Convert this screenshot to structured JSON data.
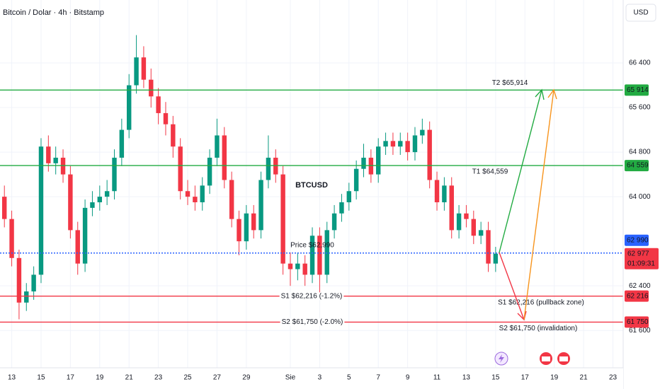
{
  "chart_data": {
    "type": "candlestick",
    "title": "Bitcoin / Dolar · 4h · Bitstamp",
    "currency": "USD",
    "symbol": "BTCUSD",
    "up_color": "#089981",
    "down_color": "#f23645",
    "x": [
      -0.5,
      0,
      0.5,
      1,
      1.5,
      2,
      2.5,
      3,
      3.5,
      4,
      4.5,
      5,
      5.5,
      6,
      6.5,
      7,
      7.5,
      8,
      8.5,
      9,
      9.5,
      10,
      10.5,
      11,
      11.5,
      12,
      12.5,
      13,
      13.5,
      14,
      14.5,
      15,
      15.5,
      16,
      16.5,
      17,
      17.5,
      18,
      18.5,
      19,
      19.5,
      20,
      20.5,
      21,
      21.5,
      22,
      22.5,
      23,
      23.5,
      24,
      24.5,
      25,
      25.5,
      26,
      26.5,
      27,
      27.5,
      28,
      28.5,
      29,
      29.5,
      30,
      30.5,
      31,
      31.5,
      32,
      32.5,
      33
    ],
    "open": [
      64000,
      63600,
      62900,
      62100,
      62300,
      62600,
      64900,
      64600,
      64700,
      64400,
      63400,
      62800,
      63800,
      63900,
      64000,
      64100,
      64700,
      65200,
      66000,
      66500,
      66100,
      65800,
      65500,
      65300,
      64900,
      64100,
      64000,
      63900,
      64200,
      64700,
      65100,
      64300,
      63600,
      63200,
      63700,
      63400,
      64300,
      64700,
      64400,
      62800,
      62700,
      62800,
      62600,
      63300,
      62600,
      63400,
      63700,
      63900,
      64100,
      64500,
      64700,
      64400,
      64900,
      65000,
      64900,
      65000,
      64800,
      65100,
      65200,
      64300,
      63900,
      64200,
      63400,
      63700,
      63600,
      63300,
      63400,
      62800
    ],
    "high": [
      64200,
      63750,
      63050,
      62450,
      62750,
      65050,
      65100,
      64900,
      64850,
      64550,
      63550,
      63950,
      64100,
      64200,
      64300,
      64850,
      65400,
      66200,
      66900,
      66700,
      66300,
      65950,
      65700,
      65450,
      65050,
      64300,
      64200,
      64350,
      64850,
      65400,
      65250,
      64450,
      63750,
      63850,
      63850,
      64450,
      65100,
      64850,
      64550,
      63000,
      63000,
      62950,
      63450,
      63450,
      63550,
      63850,
      64050,
      64250,
      64650,
      64950,
      64850,
      65050,
      65150,
      65150,
      65150,
      65150,
      65250,
      65400,
      65350,
      64450,
      64350,
      64350,
      63850,
      63850,
      63750,
      63550,
      63550,
      63100
    ],
    "low": [
      63450,
      62750,
      61800,
      61950,
      62150,
      62450,
      64450,
      64400,
      64250,
      63250,
      62600,
      62650,
      63650,
      63750,
      63850,
      63950,
      64550,
      65050,
      65850,
      65950,
      65600,
      65300,
      65100,
      64700,
      63950,
      63850,
      63750,
      63750,
      64050,
      64550,
      64150,
      63450,
      62950,
      63050,
      63250,
      63250,
      64150,
      64250,
      62600,
      62400,
      62500,
      62400,
      62450,
      62250,
      62450,
      63250,
      63550,
      63750,
      63950,
      64350,
      64250,
      64250,
      64750,
      64750,
      64750,
      64650,
      64650,
      64950,
      64150,
      63750,
      63750,
      63250,
      63250,
      63450,
      63150,
      63150,
      62650,
      62650
    ],
    "close": [
      63600,
      62900,
      62100,
      62300,
      62600,
      64900,
      64600,
      64700,
      64400,
      63400,
      62800,
      63800,
      63900,
      64000,
      64100,
      64700,
      65200,
      66000,
      66500,
      66100,
      65800,
      65500,
      65300,
      64900,
      64100,
      64000,
      63900,
      64200,
      64700,
      65100,
      64300,
      63600,
      63200,
      63700,
      63400,
      64300,
      64700,
      64400,
      62800,
      62700,
      62800,
      62600,
      63300,
      62600,
      63400,
      63700,
      63900,
      64100,
      64500,
      64700,
      64400,
      64900,
      65000,
      64900,
      65000,
      64800,
      65100,
      65200,
      64300,
      63900,
      64200,
      63400,
      63700,
      63600,
      63300,
      63400,
      62800,
      62977
    ],
    "xlim": [
      -0.8,
      41.7
    ],
    "xticks": [
      {
        "value": 0,
        "label": "13"
      },
      {
        "value": 2,
        "label": "15"
      },
      {
        "value": 4,
        "label": "17"
      },
      {
        "value": 6,
        "label": "19"
      },
      {
        "value": 8,
        "label": "21"
      },
      {
        "value": 10,
        "label": "23"
      },
      {
        "value": 12,
        "label": "25"
      },
      {
        "value": 14,
        "label": "27"
      },
      {
        "value": 16,
        "label": "29"
      },
      {
        "value": 19,
        "label": "Sie"
      },
      {
        "value": 21,
        "label": "3"
      },
      {
        "value": 23,
        "label": "5"
      },
      {
        "value": 25,
        "label": "7"
      },
      {
        "value": 27,
        "label": "9"
      },
      {
        "value": 29,
        "label": "11"
      },
      {
        "value": 31,
        "label": "13"
      },
      {
        "value": 33,
        "label": "15"
      },
      {
        "value": 35,
        "label": "17"
      },
      {
        "value": 37,
        "label": "19"
      },
      {
        "value": 39,
        "label": "21"
      },
      {
        "value": 41,
        "label": "23"
      }
    ],
    "ylim": [
      60930,
      67530
    ],
    "yticks": [
      {
        "value": 66400,
        "label": "66 400"
      },
      {
        "value": 65600,
        "label": "65 600"
      },
      {
        "value": 64800,
        "label": "64 800"
      },
      {
        "value": 64000,
        "label": "64 000"
      },
      {
        "value": 62400,
        "label": "62 400"
      },
      {
        "value": 61600,
        "label": "61 600"
      }
    ],
    "levels": [
      {
        "value": 65914,
        "color": "#22ab42",
        "style": "solid",
        "axis_label": "65 914",
        "labels": [
          "T2 $65,914"
        ]
      },
      {
        "value": 64559,
        "color": "#22ab42",
        "style": "solid",
        "axis_label": "64 559",
        "labels": [
          "T1 $64,559"
        ]
      },
      {
        "value": 62990,
        "color": "#2962ff",
        "style": "dotted",
        "axis_label": "62 990",
        "labels": [
          "Price $62,990"
        ]
      },
      {
        "value": 62216,
        "color": "#f23645",
        "style": "solid",
        "axis_label": "62 216",
        "labels": [
          "S1 $62,216 (-1.2%)",
          "S1 $62,216 (pullback zone)"
        ]
      },
      {
        "value": 61750,
        "color": "#f23645",
        "style": "solid",
        "axis_label": "61 750",
        "labels": [
          "S2 $61,750 (-2.0%)",
          "S2 $61,750 (invalidation)"
        ]
      }
    ],
    "last_price": {
      "value": 62977,
      "label": "62 977",
      "countdown": "01:09:31",
      "color": "#f23645"
    }
  }
}
